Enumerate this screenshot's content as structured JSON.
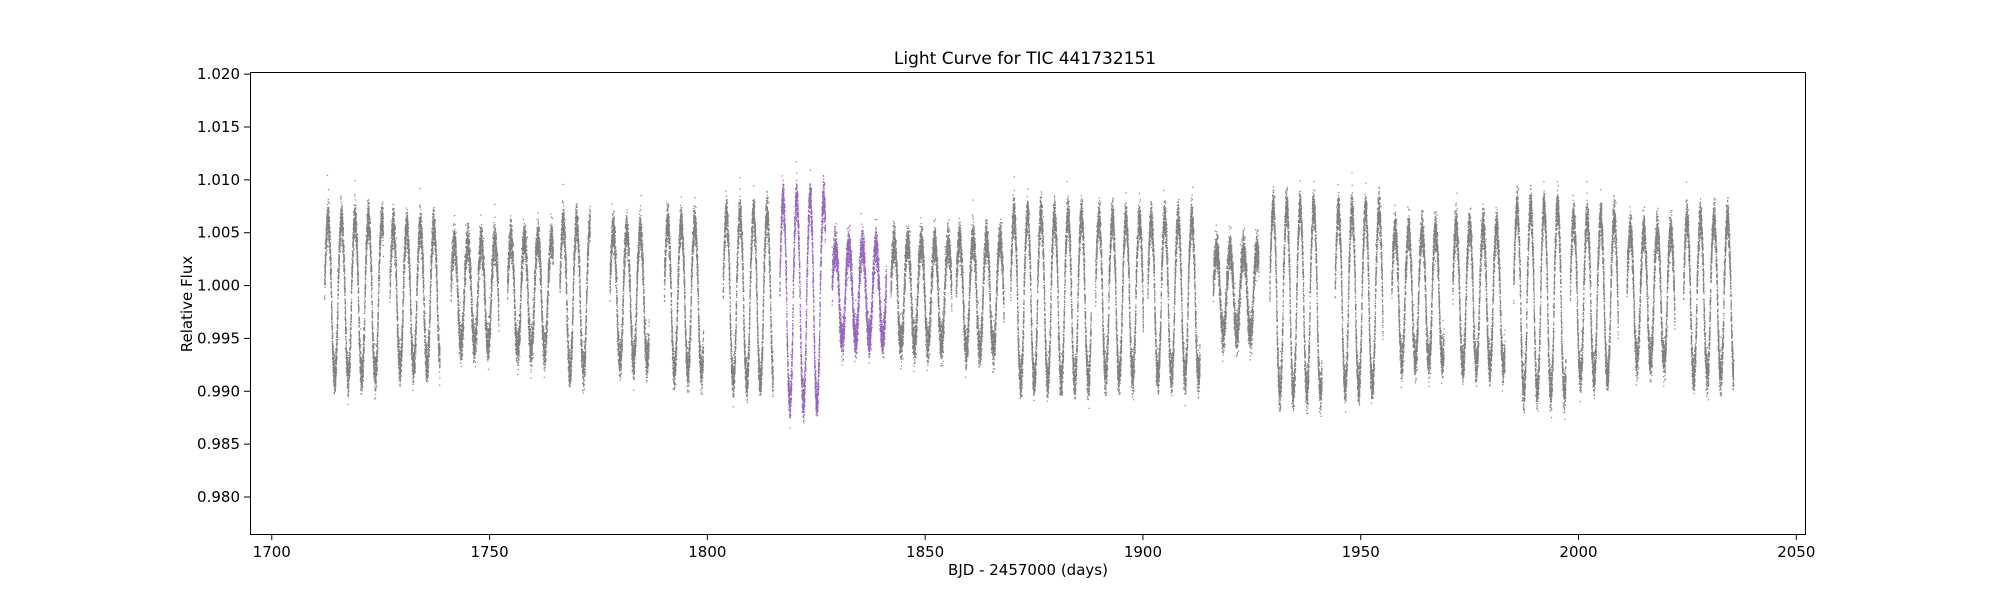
{
  "chart_data": {
    "type": "scatter",
    "title": "Light Curve for TIC 441732151",
    "xlabel": "BJD - 2457000 (days)",
    "ylabel": "Relative Flux",
    "xlim": [
      1695,
      2052
    ],
    "ylim": [
      0.9765,
      1.0202
    ],
    "xticks": [
      1700,
      1750,
      1800,
      1850,
      1900,
      1950,
      2000,
      2050
    ],
    "yticks": [
      0.98,
      0.985,
      0.99,
      0.995,
      1.0,
      1.005,
      1.01,
      1.015,
      1.02
    ],
    "xtick_labels": [
      "1700",
      "1750",
      "1800",
      "1850",
      "1900",
      "1950",
      "2000",
      "2050"
    ],
    "ytick_labels": [
      "0.980",
      "0.985",
      "0.990",
      "0.995",
      "1.000",
      "1.005",
      "1.010",
      "1.015",
      "1.020"
    ],
    "grid": false,
    "colors": {
      "base": "#7f7f7f",
      "highlight": "#9467bd"
    },
    "series": [
      {
        "color": "#7f7f7f",
        "segments": [
          {
            "start": 1712.0,
            "end": 1725.5,
            "amplitude": 0.0085
          },
          {
            "start": 1727.0,
            "end": 1738.5,
            "amplitude": 0.0075
          },
          {
            "start": 1741.0,
            "end": 1752.0,
            "amplitude": 0.0055
          },
          {
            "start": 1754.0,
            "end": 1764.5,
            "amplitude": 0.006
          },
          {
            "start": 1766.0,
            "end": 1773.0,
            "amplitude": 0.008
          },
          {
            "start": 1777.5,
            "end": 1786.5,
            "amplitude": 0.007
          },
          {
            "start": 1790.0,
            "end": 1799.0,
            "amplitude": 0.008
          },
          {
            "start": 1803.5,
            "end": 1815.0,
            "amplitude": 0.009
          },
          {
            "start": 1842.0,
            "end": 1856.0,
            "amplitude": 0.0055
          },
          {
            "start": 1857.0,
            "end": 1868.0,
            "amplitude": 0.006
          },
          {
            "start": 1869.5,
            "end": 1888.0,
            "amplitude": 0.009
          },
          {
            "start": 1889.0,
            "end": 1900.0,
            "amplitude": 0.0085
          },
          {
            "start": 1901.0,
            "end": 1913.0,
            "amplitude": 0.0085
          },
          {
            "start": 1916.0,
            "end": 1926.5,
            "amplitude": 0.0045
          },
          {
            "start": 1929.0,
            "end": 1941.0,
            "amplitude": 0.01
          },
          {
            "start": 1944.0,
            "end": 1955.0,
            "amplitude": 0.0095
          },
          {
            "start": 1957.0,
            "end": 1969.0,
            "amplitude": 0.007
          },
          {
            "start": 1971.0,
            "end": 1983.0,
            "amplitude": 0.0075
          },
          {
            "start": 1985.0,
            "end": 1997.0,
            "amplitude": 0.01
          },
          {
            "start": 1998.0,
            "end": 2009.0,
            "amplitude": 0.0085
          },
          {
            "start": 2011.0,
            "end": 2022.0,
            "amplitude": 0.007
          },
          {
            "start": 2024.0,
            "end": 2035.5,
            "amplitude": 0.0085
          }
        ]
      },
      {
        "color": "#9467bd",
        "segments": [
          {
            "start": 1816.5,
            "end": 1827.0,
            "amplitude": 0.011
          },
          {
            "start": 1828.5,
            "end": 1841.0,
            "amplitude": 0.005
          }
        ]
      }
    ]
  }
}
